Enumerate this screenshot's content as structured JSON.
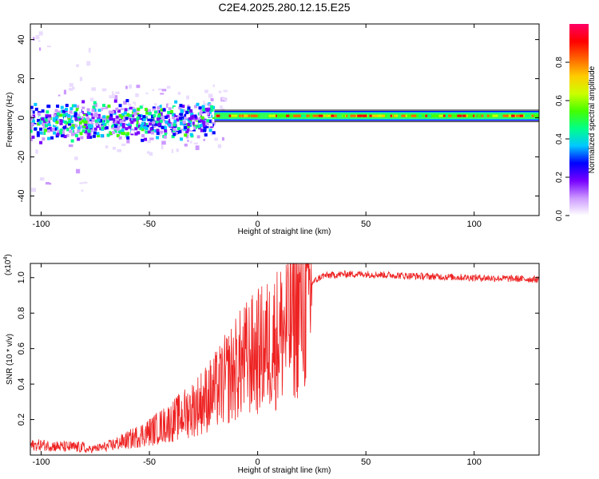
{
  "title": "C2E4.2025.280.12.15.E25",
  "chart_data": [
    {
      "id": "spectrogram",
      "type": "heatmap",
      "xlabel": "Height of straight line (km)",
      "ylabel": "Frequency (Hz)",
      "xlim": [
        -105,
        130
      ],
      "ylim": [
        -50,
        48
      ],
      "xticks": [
        -100,
        -50,
        0,
        50,
        100
      ],
      "yticks": [
        -40,
        -20,
        0,
        20,
        40
      ],
      "colorbar": {
        "label": "Normalized spectral amplitude",
        "range": [
          0,
          1
        ],
        "ticks": [
          0.0,
          0.2,
          0.4,
          0.6,
          0.8
        ],
        "colors": [
          "#ffffff",
          "#cc99ff",
          "#7700ff",
          "#0000ff",
          "#00c8ff",
          "#00ff88",
          "#44ff00",
          "#ccff00",
          "#ffcc00",
          "#ff6600",
          "#ff0000",
          "#ff0066"
        ]
      },
      "signal_band": {
        "x_start": -20,
        "x_end": 130,
        "freq_center": 1,
        "freq_halfwidth": 2.5
      },
      "noisy_region": {
        "x_start": -105,
        "x_end": -20,
        "freq_center": 0,
        "freq_halfwidth": 8
      }
    },
    {
      "id": "snr",
      "type": "line",
      "xlabel": "Height of straight line (km)",
      "ylabel": "SNR (10 * v/v)",
      "y_multiplier": "(x10",
      "y_multiplier_exp": "4",
      "y_multiplier_close": ")",
      "xlim": [
        -105,
        130
      ],
      "ylim": [
        0,
        1.08
      ],
      "xticks": [
        -100,
        -50,
        0,
        50,
        100
      ],
      "yticks": [
        0.2,
        0.4,
        0.6,
        0.8,
        1.0
      ],
      "line_color": "#ee2222",
      "envelope": {
        "x": [
          -105,
          -100,
          -90,
          -80,
          -70,
          -60,
          -50,
          -40,
          -30,
          -20,
          -15,
          -10,
          -5,
          0,
          5,
          10,
          15,
          20,
          25,
          30,
          40,
          50,
          70,
          100,
          130
        ],
        "y": [
          0.06,
          0.07,
          0.04,
          0.03,
          0.05,
          0.09,
          0.14,
          0.2,
          0.28,
          0.38,
          0.45,
          0.52,
          0.58,
          0.62,
          0.66,
          0.72,
          0.8,
          0.9,
          0.97,
          1.01,
          1.02,
          1.02,
          1.01,
          1.0,
          0.99
        ]
      }
    }
  ]
}
